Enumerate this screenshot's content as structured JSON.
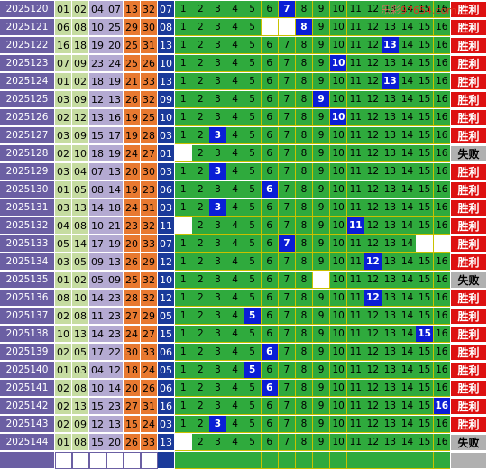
{
  "colors": {
    "issue_bg": "#6b5fa3",
    "num_colors": [
      "#c6dca1",
      "#c6dca1",
      "#b4aad2",
      "#b4aad2",
      "#e87930",
      "#e87930"
    ],
    "big_bg": "#1a3a9a",
    "grid_bg": "#2faa3d",
    "grid_empty_bg": "#ffffff",
    "grid_hit_bg": "#0a1ed6",
    "win_bg": "#dd1111",
    "lose_bg": "#b0b0b0"
  },
  "watermark": {
    "cn": "乐彩",
    "url": "97654.com"
  },
  "grid_numbers": [
    1,
    2,
    3,
    4,
    5,
    6,
    7,
    8,
    9,
    10,
    11,
    12,
    13,
    14,
    15,
    16
  ],
  "rows": [
    {
      "issue": "2025120",
      "nums": [
        "01",
        "02",
        "04",
        "07",
        "13",
        "32"
      ],
      "big": "07",
      "grid": [
        "",
        "",
        "",
        "",
        "",
        "",
        "h",
        "",
        "",
        "",
        "",
        "",
        "",
        "",
        "",
        ""
      ],
      "result": "胜利",
      "win": true
    },
    {
      "issue": "2025121",
      "nums": [
        "06",
        "08",
        "10",
        "25",
        "29",
        "30"
      ],
      "big": "08",
      "grid": [
        "",
        "",
        "",
        "",
        "",
        "e",
        "e",
        "h",
        "",
        "",
        "",
        "",
        "",
        "",
        "",
        ""
      ],
      "result": "胜利",
      "win": true
    },
    {
      "issue": "2025122",
      "nums": [
        "16",
        "18",
        "19",
        "20",
        "25",
        "31"
      ],
      "big": "13",
      "grid": [
        "",
        "",
        "",
        "",
        "",
        "",
        "",
        "",
        "",
        "",
        "",
        "",
        "h",
        "",
        "",
        ""
      ],
      "result": "胜利",
      "win": true
    },
    {
      "issue": "2025123",
      "nums": [
        "07",
        "09",
        "23",
        "24",
        "25",
        "26"
      ],
      "big": "10",
      "grid": [
        "",
        "",
        "",
        "",
        "",
        "",
        "",
        "",
        "",
        "h",
        "",
        "",
        "",
        "",
        "",
        ""
      ],
      "result": "胜利",
      "win": true
    },
    {
      "issue": "2025124",
      "nums": [
        "01",
        "02",
        "18",
        "19",
        "21",
        "33"
      ],
      "big": "13",
      "grid": [
        "",
        "",
        "",
        "",
        "",
        "",
        "",
        "",
        "",
        "",
        "",
        "",
        "h",
        "",
        "",
        ""
      ],
      "result": "胜利",
      "win": true
    },
    {
      "issue": "2025125",
      "nums": [
        "03",
        "09",
        "12",
        "13",
        "26",
        "32"
      ],
      "big": "09",
      "grid": [
        "",
        "",
        "",
        "",
        "",
        "",
        "",
        "",
        "h",
        "",
        "",
        "",
        "",
        "",
        "",
        ""
      ],
      "result": "胜利",
      "win": true
    },
    {
      "issue": "2025126",
      "nums": [
        "02",
        "12",
        "13",
        "16",
        "19",
        "25"
      ],
      "big": "10",
      "grid": [
        "",
        "",
        "",
        "",
        "",
        "",
        "",
        "",
        "",
        "h",
        "",
        "",
        "",
        "",
        "",
        ""
      ],
      "result": "胜利",
      "win": true
    },
    {
      "issue": "2025127",
      "nums": [
        "03",
        "09",
        "15",
        "17",
        "19",
        "28"
      ],
      "big": "03",
      "grid": [
        "",
        "",
        "h",
        "",
        "",
        "",
        "",
        "",
        "",
        "",
        "",
        "",
        "",
        "",
        "",
        ""
      ],
      "result": "胜利",
      "win": true
    },
    {
      "issue": "2025128",
      "nums": [
        "02",
        "10",
        "18",
        "19",
        "24",
        "27"
      ],
      "big": "01",
      "grid": [
        "e",
        "",
        "",
        "",
        "",
        "",
        "",
        "",
        "",
        "",
        "",
        "",
        "",
        "",
        "",
        ""
      ],
      "result": "失败",
      "win": false
    },
    {
      "issue": "2025129",
      "nums": [
        "03",
        "04",
        "07",
        "13",
        "20",
        "30"
      ],
      "big": "03",
      "grid": [
        "",
        "",
        "h",
        "",
        "",
        "",
        "",
        "",
        "",
        "",
        "",
        "",
        "",
        "",
        "",
        ""
      ],
      "result": "胜利",
      "win": true
    },
    {
      "issue": "2025130",
      "nums": [
        "01",
        "05",
        "08",
        "14",
        "19",
        "23"
      ],
      "big": "06",
      "grid": [
        "",
        "",
        "",
        "",
        "",
        "h",
        "",
        "",
        "",
        "",
        "",
        "",
        "",
        "",
        "",
        ""
      ],
      "result": "胜利",
      "win": true
    },
    {
      "issue": "2025131",
      "nums": [
        "03",
        "13",
        "14",
        "18",
        "24",
        "31"
      ],
      "big": "03",
      "grid": [
        "",
        "",
        "h",
        "",
        "",
        "",
        "",
        "",
        "",
        "",
        "",
        "",
        "",
        "",
        "",
        ""
      ],
      "result": "胜利",
      "win": true
    },
    {
      "issue": "2025132",
      "nums": [
        "04",
        "08",
        "10",
        "21",
        "23",
        "32"
      ],
      "big": "11",
      "grid": [
        "e",
        "",
        "",
        "",
        "",
        "",
        "",
        "",
        "",
        "",
        "h",
        "",
        "",
        "",
        "",
        ""
      ],
      "result": "胜利",
      "win": true
    },
    {
      "issue": "2025133",
      "nums": [
        "05",
        "14",
        "17",
        "19",
        "20",
        "33"
      ],
      "big": "07",
      "grid": [
        "",
        "",
        "",
        "",
        "",
        "",
        "h",
        "",
        "",
        "",
        "",
        "",
        "",
        "",
        "e",
        "e"
      ],
      "result": "胜利",
      "win": true
    },
    {
      "issue": "2025134",
      "nums": [
        "03",
        "05",
        "09",
        "13",
        "26",
        "29"
      ],
      "big": "12",
      "grid": [
        "",
        "",
        "",
        "",
        "",
        "",
        "",
        "",
        "",
        "",
        "",
        "h",
        "",
        "",
        "",
        ""
      ],
      "result": "胜利",
      "win": true
    },
    {
      "issue": "2025135",
      "nums": [
        "01",
        "02",
        "05",
        "09",
        "25",
        "32"
      ],
      "big": "10",
      "grid": [
        "",
        "",
        "",
        "",
        "",
        "",
        "",
        "",
        "e",
        "",
        "",
        "",
        "",
        "",
        "",
        ""
      ],
      "result": "失败",
      "win": false
    },
    {
      "issue": "2025136",
      "nums": [
        "08",
        "10",
        "14",
        "23",
        "28",
        "32"
      ],
      "big": "12",
      "grid": [
        "",
        "",
        "",
        "",
        "",
        "",
        "",
        "",
        "",
        "",
        "",
        "h",
        "",
        "",
        "",
        ""
      ],
      "result": "胜利",
      "win": true
    },
    {
      "issue": "2025137",
      "nums": [
        "02",
        "08",
        "11",
        "23",
        "27",
        "29"
      ],
      "big": "05",
      "grid": [
        "",
        "",
        "",
        "",
        "h",
        "",
        "",
        "",
        "",
        "",
        "",
        "",
        "",
        "",
        "",
        ""
      ],
      "result": "胜利",
      "win": true
    },
    {
      "issue": "2025138",
      "nums": [
        "10",
        "13",
        "14",
        "23",
        "24",
        "27"
      ],
      "big": "15",
      "grid": [
        "",
        "",
        "",
        "",
        "",
        "",
        "",
        "",
        "",
        "",
        "",
        "",
        "",
        "",
        "h",
        ""
      ],
      "result": "胜利",
      "win": true
    },
    {
      "issue": "2025139",
      "nums": [
        "02",
        "05",
        "17",
        "22",
        "30",
        "33"
      ],
      "big": "06",
      "grid": [
        "",
        "",
        "",
        "",
        "",
        "h",
        "",
        "",
        "",
        "",
        "",
        "",
        "",
        "",
        "",
        ""
      ],
      "result": "胜利",
      "win": true
    },
    {
      "issue": "2025140",
      "nums": [
        "01",
        "03",
        "04",
        "12",
        "18",
        "24"
      ],
      "big": "05",
      "grid": [
        "",
        "",
        "",
        "",
        "h",
        "",
        "",
        "",
        "",
        "",
        "",
        "",
        "",
        "",
        "",
        ""
      ],
      "result": "胜利",
      "win": true
    },
    {
      "issue": "2025141",
      "nums": [
        "02",
        "08",
        "10",
        "14",
        "20",
        "26"
      ],
      "big": "06",
      "grid": [
        "",
        "",
        "",
        "",
        "",
        "h",
        "",
        "",
        "",
        "",
        "",
        "",
        "",
        "",
        "",
        ""
      ],
      "result": "胜利",
      "win": true
    },
    {
      "issue": "2025142",
      "nums": [
        "02",
        "13",
        "15",
        "23",
        "27",
        "31"
      ],
      "big": "16",
      "grid": [
        "",
        "",
        "",
        "",
        "",
        "",
        "",
        "",
        "",
        "",
        "",
        "",
        "",
        "",
        "",
        "h"
      ],
      "result": "胜利",
      "win": true
    },
    {
      "issue": "2025143",
      "nums": [
        "02",
        "09",
        "12",
        "13",
        "15",
        "24"
      ],
      "big": "03",
      "grid": [
        "",
        "",
        "h",
        "",
        "",
        "",
        "",
        "",
        "",
        "",
        "",
        "",
        "",
        "",
        "",
        ""
      ],
      "result": "胜利",
      "win": true
    },
    {
      "issue": "2025144",
      "nums": [
        "01",
        "08",
        "15",
        "20",
        "26",
        "33"
      ],
      "big": "13",
      "grid": [
        "e",
        "",
        "",
        "",
        "",
        "",
        "",
        "",
        "",
        "",
        "",
        "",
        "",
        "",
        "",
        ""
      ],
      "result": "失败",
      "win": false
    }
  ]
}
